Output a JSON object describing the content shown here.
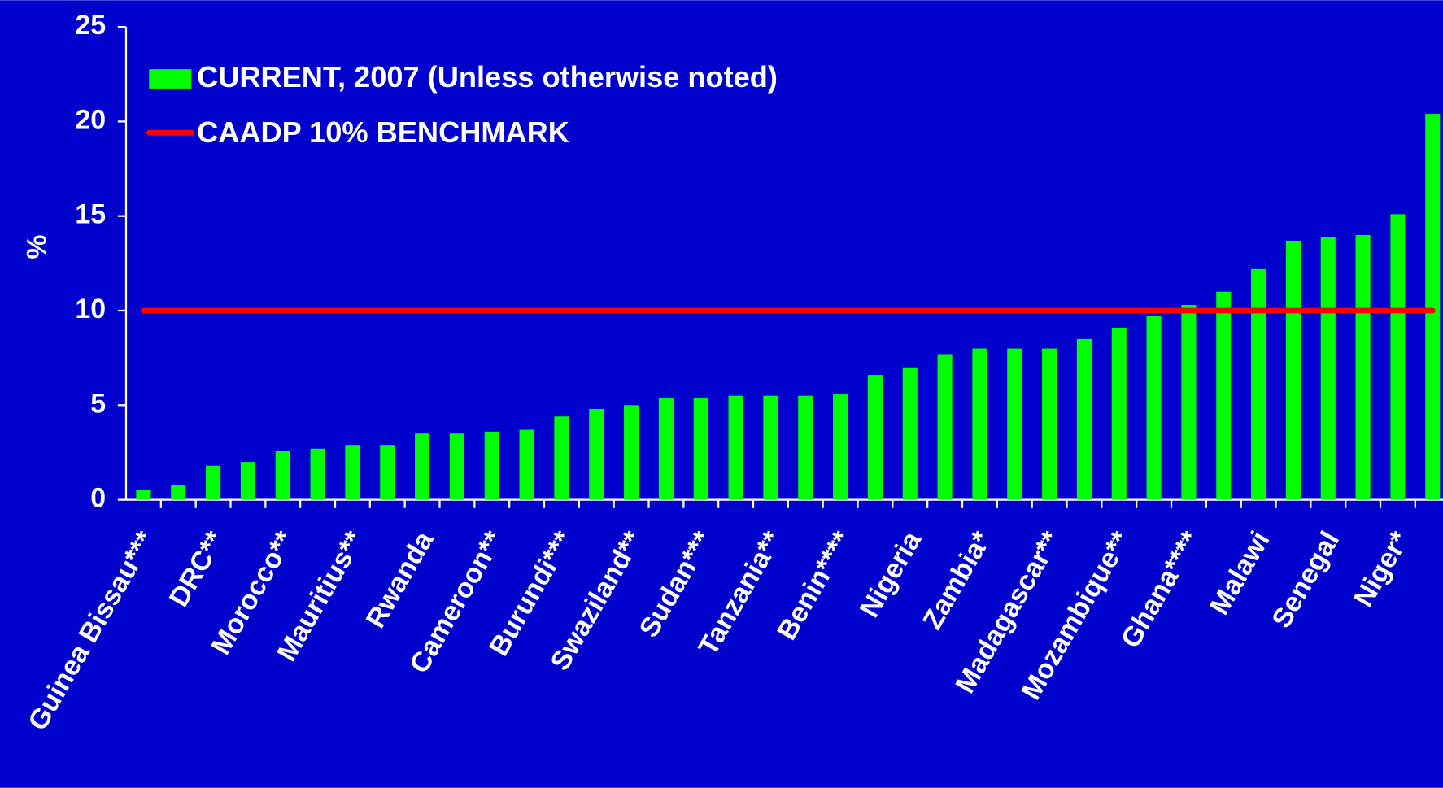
{
  "chart_data": {
    "type": "bar",
    "y_label": "%",
    "categories": [
      "Guinea Bissau***",
      null,
      "DRC**",
      null,
      "Morocco**",
      null,
      "Mauritius**",
      null,
      "Rwanda",
      null,
      "Cameroon**",
      null,
      "Burundi***",
      null,
      "Swaziland**",
      null,
      "Sudan***",
      null,
      "Tanzania**",
      null,
      "Benin****",
      null,
      "Nigeria",
      null,
      "Zambia*",
      null,
      "Madagascar**",
      null,
      "Mozambique**",
      null,
      "Ghana****",
      null,
      "Malawi",
      null,
      "Senegal",
      null,
      "Niger*",
      null
    ],
    "series": [
      {
        "name": "CURRENT, 2007 (Unless otherwise noted)",
        "color": "#00ff00",
        "values": [
          0.5,
          0.8,
          1.8,
          2.0,
          2.6,
          2.7,
          2.9,
          2.9,
          3.5,
          3.5,
          3.6,
          3.7,
          4.4,
          4.8,
          5.0,
          5.4,
          5.4,
          5.5,
          5.5,
          5.5,
          5.6,
          6.6,
          7.0,
          7.7,
          8.0,
          8.0,
          8.0,
          8.5,
          9.1,
          9.7,
          10.3,
          11.0,
          12.2,
          13.7,
          13.9,
          14.0,
          15.1,
          20.4
        ]
      }
    ],
    "benchmark": {
      "name": "CAADP 10% BENCHMARK",
      "value": 10,
      "color": "#ff0000"
    },
    "ylim": [
      0,
      25
    ],
    "yticks": [
      0,
      5,
      10,
      15,
      20,
      25
    ],
    "background": "#0000cc"
  }
}
